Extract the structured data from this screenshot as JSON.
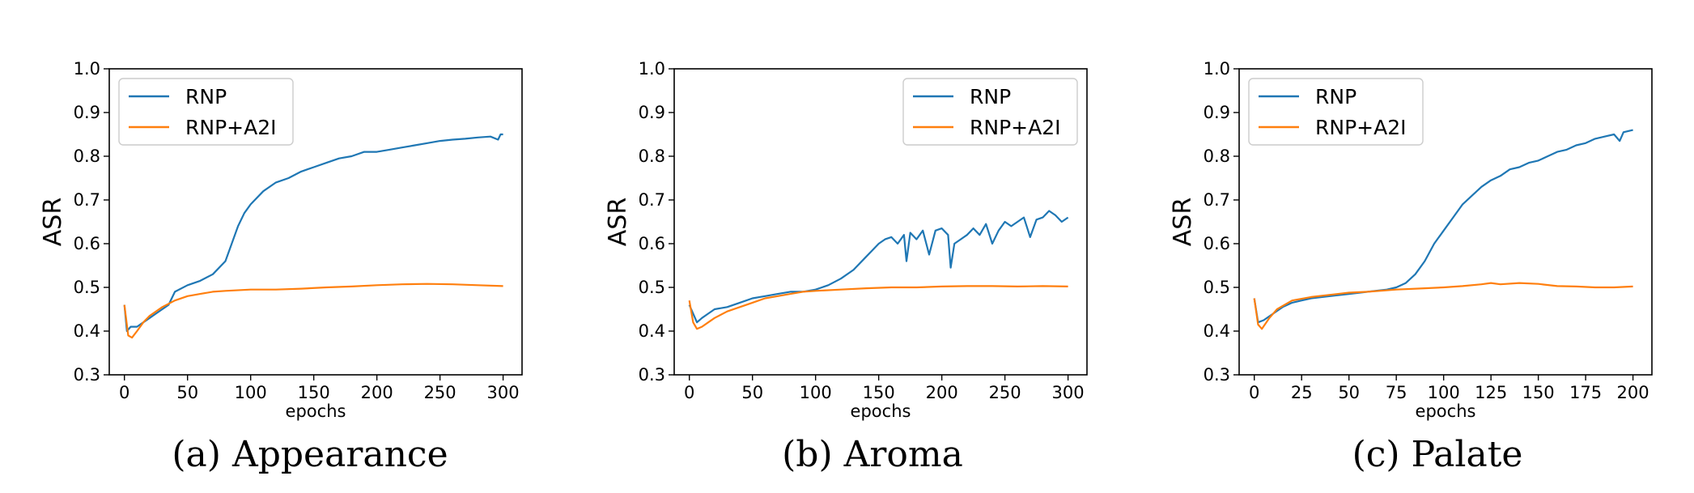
{
  "colors": {
    "rnp": "#1f77b4",
    "rnp_a2i": "#ff7f0e"
  },
  "chart_data": [
    {
      "type": "line",
      "caption": "(a) Appearance",
      "xlabel": "epochs",
      "ylabel": "ASR",
      "xlim": [
        -12,
        315
      ],
      "ylim": [
        0.3,
        1.0
      ],
      "xticks": [
        0,
        50,
        100,
        150,
        200,
        250,
        300
      ],
      "yticks": [
        0.3,
        0.4,
        0.5,
        0.6,
        0.7,
        0.8,
        0.9,
        1.0
      ],
      "grid": false,
      "legend_position": "upper-left",
      "series": [
        {
          "name": "RNP",
          "color": "#1f77b4",
          "x": [
            0,
            2,
            5,
            10,
            15,
            20,
            25,
            30,
            35,
            40,
            50,
            60,
            70,
            80,
            85,
            90,
            95,
            100,
            110,
            120,
            130,
            140,
            150,
            160,
            170,
            180,
            190,
            200,
            210,
            220,
            230,
            240,
            250,
            260,
            270,
            280,
            290,
            296,
            298,
            300
          ],
          "y": [
            0.46,
            0.4,
            0.41,
            0.41,
            0.42,
            0.43,
            0.44,
            0.45,
            0.46,
            0.49,
            0.505,
            0.515,
            0.53,
            0.56,
            0.6,
            0.64,
            0.67,
            0.69,
            0.72,
            0.74,
            0.75,
            0.765,
            0.775,
            0.785,
            0.795,
            0.8,
            0.81,
            0.81,
            0.815,
            0.82,
            0.825,
            0.83,
            0.835,
            0.838,
            0.84,
            0.843,
            0.845,
            0.838,
            0.85,
            0.85
          ]
        },
        {
          "name": "RNP+A2I",
          "color": "#ff7f0e",
          "x": [
            0,
            3,
            6,
            10,
            15,
            20,
            30,
            40,
            50,
            60,
            70,
            80,
            100,
            120,
            140,
            160,
            180,
            200,
            220,
            240,
            260,
            280,
            300
          ],
          "y": [
            0.46,
            0.39,
            0.385,
            0.4,
            0.42,
            0.435,
            0.455,
            0.47,
            0.48,
            0.485,
            0.49,
            0.492,
            0.495,
            0.495,
            0.497,
            0.5,
            0.502,
            0.505,
            0.507,
            0.508,
            0.507,
            0.505,
            0.503
          ]
        }
      ]
    },
    {
      "type": "line",
      "caption": "(b) Aroma",
      "xlabel": "epochs",
      "ylabel": "ASR",
      "xlim": [
        -12,
        315
      ],
      "ylim": [
        0.3,
        1.0
      ],
      "xticks": [
        0,
        50,
        100,
        150,
        200,
        250,
        300
      ],
      "yticks": [
        0.3,
        0.4,
        0.5,
        0.6,
        0.7,
        0.8,
        0.9,
        1.0
      ],
      "grid": false,
      "legend_position": "upper-right",
      "series": [
        {
          "name": "RNP",
          "color": "#1f77b4",
          "x": [
            0,
            3,
            6,
            10,
            15,
            20,
            30,
            40,
            50,
            60,
            70,
            80,
            90,
            100,
            110,
            120,
            130,
            140,
            145,
            150,
            155,
            160,
            165,
            170,
            172,
            175,
            180,
            185,
            190,
            195,
            200,
            205,
            207,
            210,
            215,
            220,
            225,
            230,
            235,
            240,
            245,
            250,
            255,
            260,
            265,
            270,
            275,
            280,
            285,
            290,
            295,
            300
          ],
          "y": [
            0.46,
            0.44,
            0.42,
            0.43,
            0.44,
            0.45,
            0.455,
            0.465,
            0.475,
            0.48,
            0.485,
            0.49,
            0.49,
            0.495,
            0.505,
            0.52,
            0.54,
            0.57,
            0.585,
            0.6,
            0.61,
            0.615,
            0.6,
            0.62,
            0.56,
            0.625,
            0.61,
            0.63,
            0.575,
            0.63,
            0.635,
            0.62,
            0.545,
            0.6,
            0.61,
            0.62,
            0.635,
            0.62,
            0.645,
            0.6,
            0.63,
            0.65,
            0.64,
            0.65,
            0.66,
            0.615,
            0.655,
            0.66,
            0.675,
            0.665,
            0.65,
            0.66
          ]
        },
        {
          "name": "RNP+A2I",
          "color": "#ff7f0e",
          "x": [
            0,
            3,
            6,
            10,
            15,
            20,
            30,
            40,
            50,
            60,
            70,
            80,
            90,
            100,
            120,
            140,
            160,
            180,
            200,
            220,
            240,
            260,
            280,
            300
          ],
          "y": [
            0.47,
            0.42,
            0.405,
            0.41,
            0.42,
            0.43,
            0.445,
            0.455,
            0.465,
            0.475,
            0.48,
            0.485,
            0.49,
            0.492,
            0.495,
            0.498,
            0.5,
            0.5,
            0.502,
            0.503,
            0.503,
            0.502,
            0.503,
            0.502
          ]
        }
      ]
    },
    {
      "type": "line",
      "caption": "(c) Palate",
      "xlabel": "epochs",
      "ylabel": "ASR",
      "xlim": [
        -8,
        210
      ],
      "ylim": [
        0.3,
        1.0
      ],
      "xticks": [
        0,
        25,
        50,
        75,
        100,
        125,
        150,
        175,
        200
      ],
      "yticks": [
        0.3,
        0.4,
        0.5,
        0.6,
        0.7,
        0.8,
        0.9,
        1.0
      ],
      "grid": false,
      "legend_position": "upper-left",
      "series": [
        {
          "name": "RNP",
          "color": "#1f77b4",
          "x": [
            0,
            2,
            5,
            10,
            15,
            20,
            25,
            30,
            40,
            50,
            60,
            70,
            75,
            80,
            85,
            90,
            95,
            100,
            105,
            110,
            115,
            120,
            125,
            130,
            135,
            140,
            145,
            150,
            155,
            160,
            165,
            170,
            175,
            180,
            185,
            190,
            193,
            195,
            200
          ],
          "y": [
            0.475,
            0.42,
            0.425,
            0.44,
            0.455,
            0.465,
            0.47,
            0.475,
            0.48,
            0.485,
            0.49,
            0.495,
            0.5,
            0.51,
            0.53,
            0.56,
            0.6,
            0.63,
            0.66,
            0.69,
            0.71,
            0.73,
            0.745,
            0.755,
            0.77,
            0.775,
            0.785,
            0.79,
            0.8,
            0.81,
            0.815,
            0.825,
            0.83,
            0.84,
            0.845,
            0.85,
            0.835,
            0.855,
            0.86
          ]
        },
        {
          "name": "RNP+A2I",
          "color": "#ff7f0e",
          "x": [
            0,
            2,
            4,
            8,
            12,
            16,
            20,
            30,
            40,
            50,
            60,
            75,
            90,
            100,
            110,
            120,
            125,
            130,
            140,
            150,
            160,
            170,
            180,
            190,
            200
          ],
          "y": [
            0.475,
            0.415,
            0.405,
            0.43,
            0.45,
            0.46,
            0.47,
            0.478,
            0.483,
            0.488,
            0.49,
            0.495,
            0.498,
            0.5,
            0.503,
            0.507,
            0.51,
            0.507,
            0.51,
            0.508,
            0.503,
            0.502,
            0.5,
            0.5,
            0.502
          ]
        }
      ]
    }
  ]
}
